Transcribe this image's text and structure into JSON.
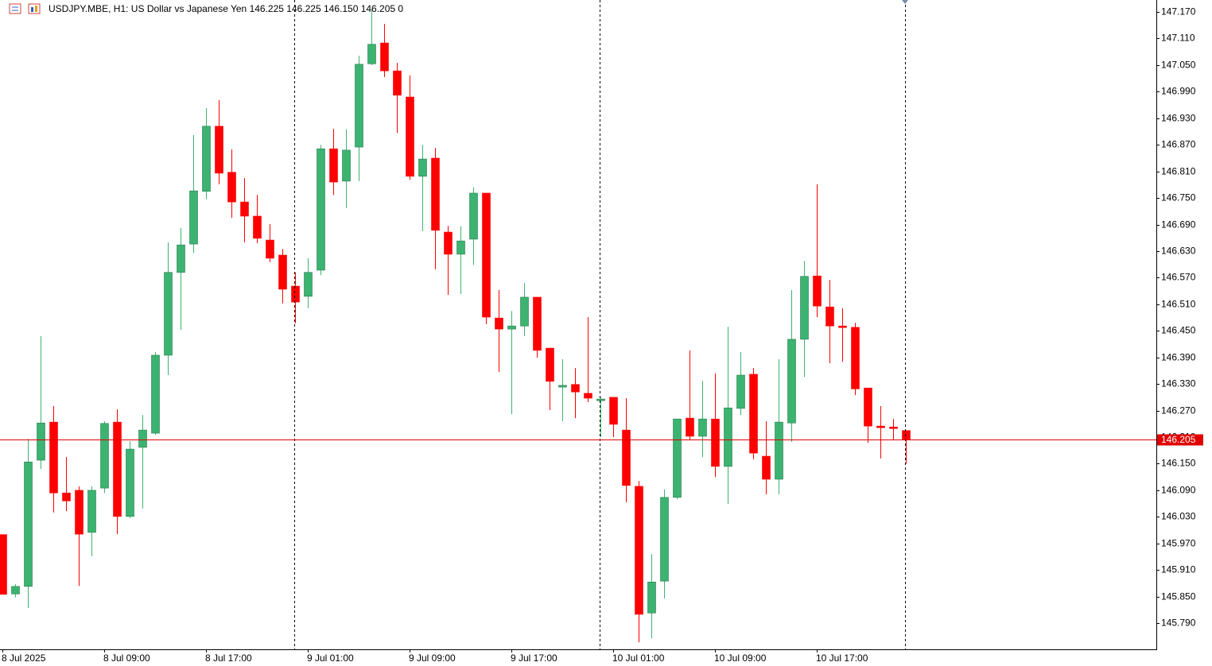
{
  "chart_data": {
    "type": "candlestick",
    "title": "USDJPY.MBE, H1:  US Dollar vs Japanese Yen  146.225 146.225 146.150 146.205  0",
    "categories": [
      "8 Jul 2025",
      null,
      null,
      null,
      null,
      null,
      null,
      null,
      "8 Jul 09:00",
      null,
      null,
      null,
      null,
      null,
      null,
      null,
      "8 Jul 17:00",
      null,
      null,
      null,
      null,
      null,
      null,
      null,
      "9 Jul 01:00",
      null,
      null,
      null,
      null,
      null,
      null,
      null,
      "9 Jul 09:00",
      null,
      null,
      null,
      null,
      null,
      null,
      null,
      "9 Jul 17:00",
      null,
      null,
      null,
      null,
      null,
      null,
      null,
      "10 Jul 01:00",
      null,
      null,
      null,
      null,
      null,
      null,
      null,
      "10 Jul 09:00",
      null,
      null,
      null,
      null,
      null,
      null,
      null,
      "10 Jul 17:00",
      null,
      null,
      null,
      null,
      null,
      null,
      null
    ],
    "open": [
      145.99,
      145.856,
      145.873,
      146.158,
      146.244,
      146.084,
      146.09,
      145.995,
      146.095,
      146.244,
      146.031,
      146.187,
      146.219,
      146.395,
      146.582,
      146.646,
      146.765,
      146.912,
      146.808,
      146.741,
      146.709,
      146.655,
      146.621,
      146.551,
      146.528,
      146.587,
      146.861,
      146.788,
      146.865,
      147.053,
      147.1,
      147.037,
      146.978,
      146.799,
      146.84,
      146.673,
      146.623,
      146.657,
      146.761,
      146.479,
      146.454,
      146.461,
      146.526,
      146.411,
      146.323,
      146.329,
      146.309,
      146.293,
      146.3,
      146.226,
      146.099,
      145.813,
      145.885,
      146.074,
      146.253,
      146.212,
      146.251,
      146.144,
      146.275,
      146.352,
      146.167,
      146.115,
      146.242,
      146.431,
      146.574,
      146.504,
      146.461,
      146.458,
      146.321,
      146.235,
      146.233,
      146.225
    ],
    "high": [
      145.99,
      145.878,
      146.206,
      146.438,
      146.28,
      146.165,
      146.099,
      146.099,
      146.246,
      146.273,
      146.201,
      146.26,
      146.402,
      146.65,
      146.682,
      146.892,
      146.953,
      146.971,
      146.86,
      146.795,
      146.757,
      146.691,
      146.635,
      146.582,
      146.614,
      146.87,
      146.906,
      146.905,
      147.071,
      147.175,
      147.143,
      147.055,
      147.027,
      146.87,
      146.863,
      146.687,
      146.686,
      146.774,
      146.761,
      146.542,
      146.495,
      146.558,
      146.526,
      146.411,
      146.386,
      146.366,
      146.481,
      146.3,
      146.3,
      146.298,
      146.111,
      145.946,
      146.092,
      146.251,
      146.406,
      146.337,
      146.354,
      146.459,
      146.402,
      146.366,
      146.246,
      146.386,
      146.542,
      146.608,
      146.781,
      146.565,
      146.501,
      146.468,
      146.321,
      146.28,
      146.251,
      146.225
    ],
    "low": [
      145.855,
      145.848,
      145.824,
      146.138,
      146.04,
      146.043,
      145.874,
      145.941,
      146.084,
      145.991,
      146.027,
      146.049,
      146.215,
      146.35,
      146.452,
      146.626,
      146.747,
      146.781,
      146.705,
      146.65,
      146.648,
      146.605,
      146.512,
      146.467,
      146.501,
      146.576,
      146.757,
      146.727,
      146.788,
      147.05,
      147.023,
      146.897,
      146.791,
      146.675,
      146.589,
      146.531,
      146.533,
      146.599,
      146.465,
      146.357,
      146.262,
      146.438,
      146.389,
      146.271,
      146.246,
      146.253,
      146.289,
      146.21,
      146.21,
      146.063,
      145.747,
      145.756,
      145.846,
      146.07,
      146.205,
      146.165,
      146.12,
      146.059,
      146.26,
      146.16,
      146.081,
      146.081,
      146.199,
      146.346,
      146.481,
      146.377,
      146.38,
      146.305,
      146.197,
      146.162,
      146.203,
      146.15
    ],
    "close": [
      145.855,
      145.873,
      146.154,
      146.242,
      146.084,
      146.066,
      145.991,
      146.09,
      146.241,
      146.031,
      146.183,
      146.226,
      146.395,
      146.582,
      146.644,
      146.766,
      146.912,
      146.806,
      146.741,
      146.709,
      146.659,
      146.614,
      146.544,
      146.515,
      146.582,
      146.861,
      146.786,
      146.858,
      147.052,
      147.097,
      147.037,
      146.982,
      146.799,
      146.838,
      146.677,
      146.623,
      146.653,
      146.761,
      146.481,
      146.454,
      146.461,
      146.526,
      146.406,
      146.336,
      146.327,
      146.312,
      146.298,
      146.296,
      146.239,
      146.101,
      145.81,
      145.883,
      146.074,
      146.251,
      146.212,
      146.251,
      146.144,
      146.276,
      146.35,
      146.174,
      146.115,
      146.244,
      146.431,
      146.573,
      146.506,
      146.461,
      146.458,
      146.319,
      146.235,
      146.232,
      146.23,
      146.205
    ],
    "up_color": "#3cb371",
    "down_color": "#ff0000",
    "ylim": [
      145.731,
      147.197
    ],
    "yticks": [
      {
        "value": 147.17,
        "label": "147.170"
      },
      {
        "value": 147.11,
        "label": "147.110"
      },
      {
        "value": 147.05,
        "label": "147.050"
      },
      {
        "value": 146.99,
        "label": "146.990"
      },
      {
        "value": 146.93,
        "label": "146.930"
      },
      {
        "value": 146.87,
        "label": "146.870"
      },
      {
        "value": 146.81,
        "label": "146.810"
      },
      {
        "value": 146.75,
        "label": "146.750"
      },
      {
        "value": 146.69,
        "label": "146.690"
      },
      {
        "value": 146.63,
        "label": "146.630"
      },
      {
        "value": 146.57,
        "label": "146.570"
      },
      {
        "value": 146.51,
        "label": "146.510"
      },
      {
        "value": 146.45,
        "label": "146.450"
      },
      {
        "value": 146.39,
        "label": "146.390"
      },
      {
        "value": 146.33,
        "label": "146.330"
      },
      {
        "value": 146.27,
        "label": "146.270"
      },
      {
        "value": 146.21,
        "label": "146.210"
      },
      {
        "value": 146.15,
        "label": "146.150"
      },
      {
        "value": 146.09,
        "label": "146.090"
      },
      {
        "value": 146.03,
        "label": "146.030"
      },
      {
        "value": 145.97,
        "label": "145.970"
      },
      {
        "value": 145.91,
        "label": "145.910"
      },
      {
        "value": 145.85,
        "label": "145.850"
      },
      {
        "value": 145.79,
        "label": "145.790"
      }
    ],
    "last_price": {
      "value": 146.205,
      "label": "146.205"
    },
    "last_price_color": "#e00000"
  }
}
